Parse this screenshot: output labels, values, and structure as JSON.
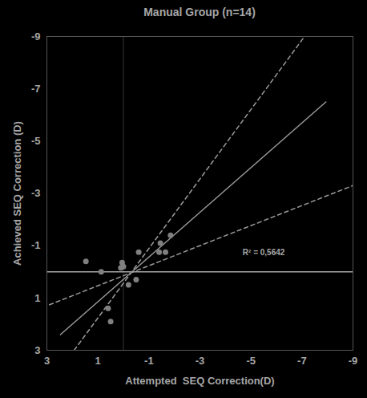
{
  "chart_data": {
    "type": "scatter",
    "title": "Manual Group (n=14)",
    "x_label": "Attempted  SEQ Correction(D)",
    "y_label": "Achieved SEQ Correction (D)",
    "xlim": [
      3,
      -9
    ],
    "ylim": [
      3,
      -9
    ],
    "xticks": [
      3,
      1,
      -1,
      -3,
      -5,
      -7,
      -9
    ],
    "yticks": [
      3,
      1,
      -1,
      -3,
      -5,
      -7,
      -9
    ],
    "grid": false,
    "points": {
      "x": [
        1.47,
        0.87,
        0.1,
        0.05,
        0.0,
        -0.2,
        -0.5,
        -0.6,
        -1.4,
        -1.45,
        -1.65,
        -1.85,
        0.6,
        0.5
      ],
      "y": [
        -0.4,
        0.0,
        -0.15,
        -0.35,
        -0.2,
        0.5,
        0.3,
        -0.75,
        -0.75,
        -1.1,
        -0.75,
        -1.4,
        1.4,
        1.9
      ],
      "color": "#808080",
      "marker": "circle"
    },
    "fit_line": {
      "x": [
        2.47,
        -7.94
      ],
      "y": [
        2.4,
        -6.5
      ],
      "color": "#999999",
      "line_style": "solid"
    },
    "confidence_bands": [
      {
        "x": [
          1.93,
          -7.1
        ],
        "y": [
          3,
          -9
        ],
        "color": "#999999",
        "line_style": "dashed"
      },
      {
        "x": [
          2.9,
          -9
        ],
        "y": [
          1.26,
          -3.3
        ],
        "color": "#999999",
        "line_style": "dashed"
      }
    ],
    "annotations": [
      {
        "text": "R² = 0,5642",
        "x": -5.5,
        "y": -0.75
      }
    ]
  }
}
